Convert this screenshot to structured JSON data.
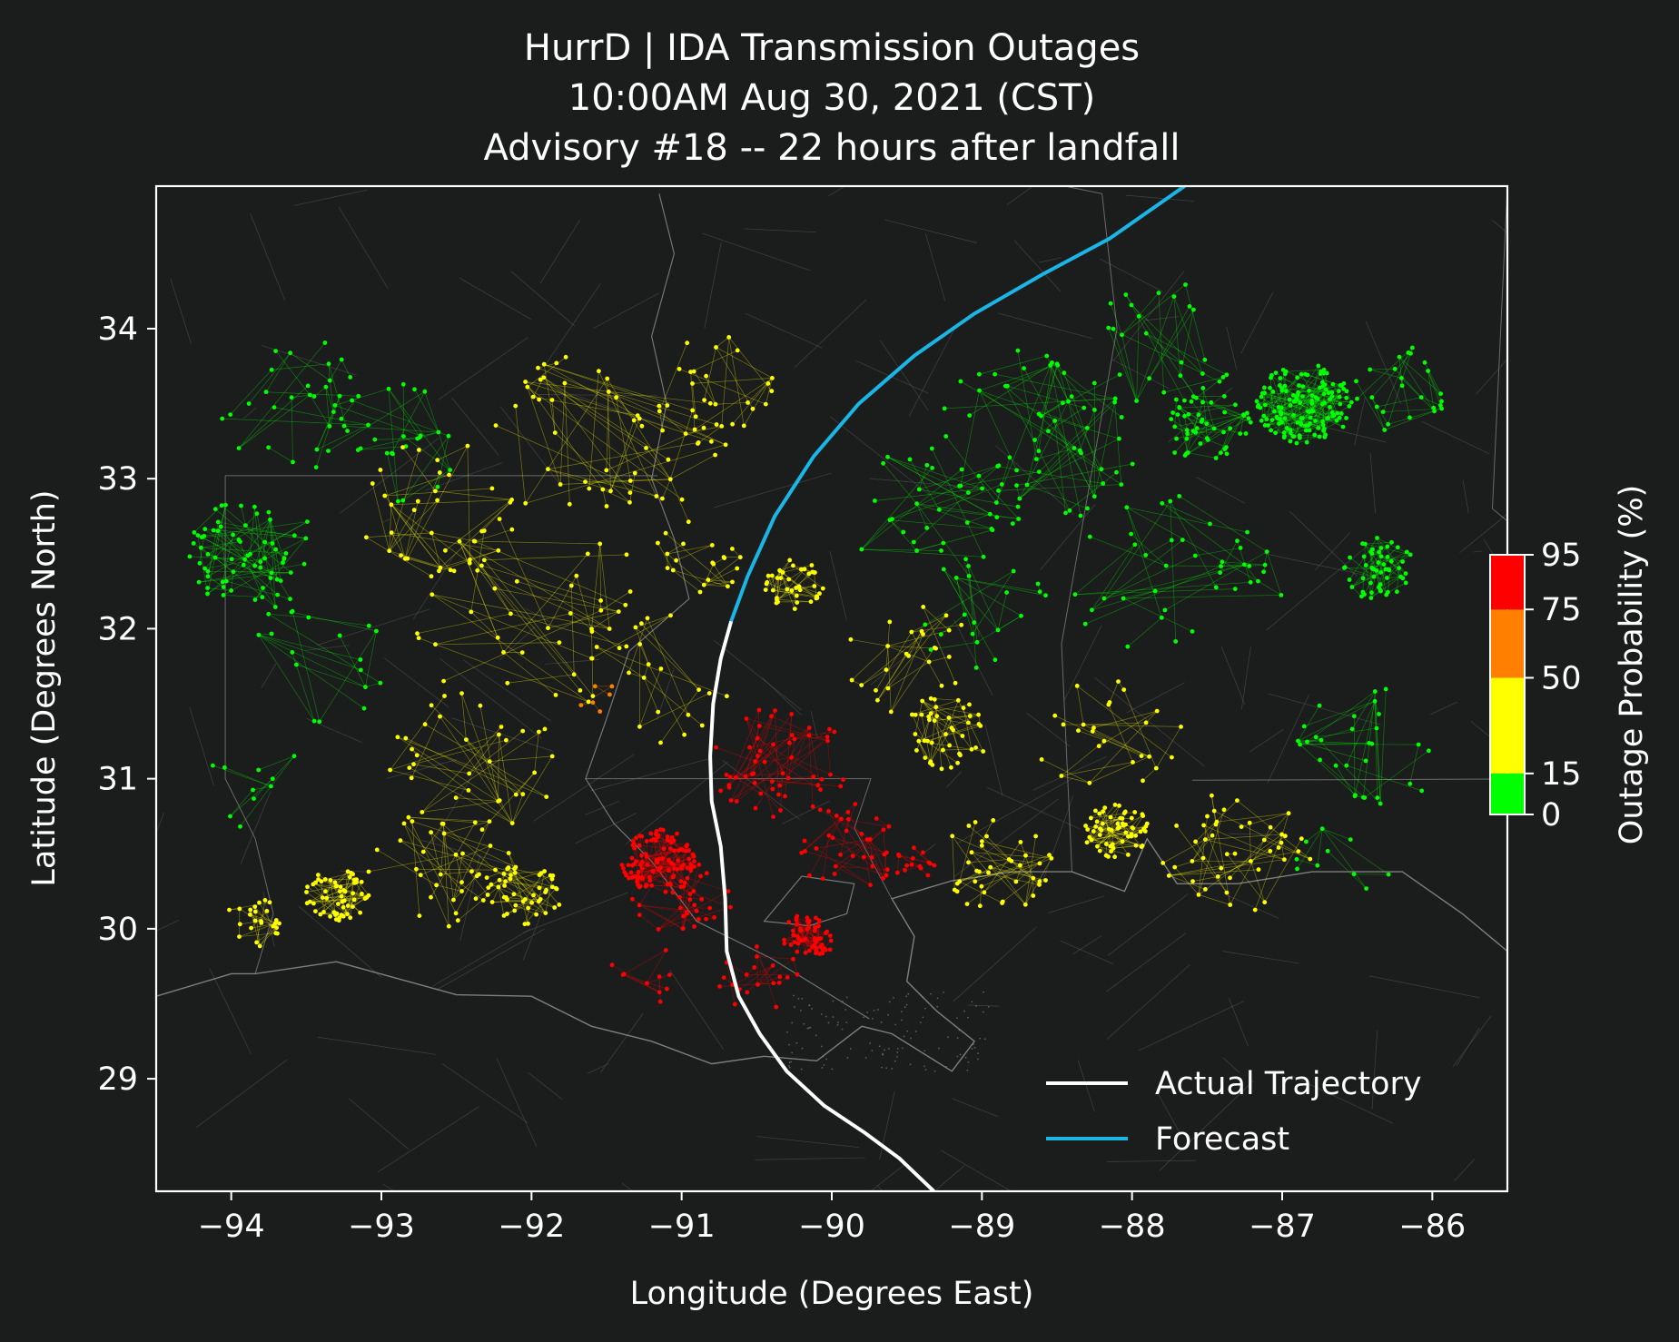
{
  "title_lines": [
    "HurrD | IDA Transmission Outages",
    "10:00AM Aug 30, 2021 (CST)",
    "Advisory #18 -- 22 hours after landfall"
  ],
  "xlabel": "Longitude (Degrees East)",
  "ylabel": "Latitude (Degrees North)",
  "colorbar_label": "Outage Probability (%)",
  "colors": {
    "background": "#1b1c1c",
    "actual_track": "#ffffff",
    "forecast_track": "#19b6e6",
    "green": "#00ff00",
    "yellow": "#ffff00",
    "orange": "#ff8000",
    "red": "#ff0000"
  },
  "chart_data": {
    "type": "scatter",
    "xlim": [
      -94.5,
      -85.5
    ],
    "ylim": [
      28.25,
      34.95
    ],
    "xticks": [
      -94,
      -93,
      -92,
      -91,
      -90,
      -89,
      -88,
      -87,
      -86
    ],
    "yticks": [
      29,
      30,
      31,
      32,
      33,
      34
    ],
    "xtick_labels": [
      "−94",
      "−93",
      "−92",
      "−91",
      "−90",
      "−89",
      "−88",
      "−87",
      "−86"
    ],
    "ytick_labels": [
      "29",
      "30",
      "31",
      "32",
      "33",
      "34"
    ],
    "colorbar": {
      "ticks": [
        0,
        15,
        50,
        75,
        95
      ],
      "tick_labels": [
        "0",
        "15",
        "50",
        "75",
        "95"
      ],
      "bins": [
        {
          "from": 0,
          "to": 15,
          "color": "#00ff00"
        },
        {
          "from": 15,
          "to": 50,
          "color": "#ffff00"
        },
        {
          "from": 50,
          "to": 75,
          "color": "#ff8000"
        },
        {
          "from": 75,
          "to": 95,
          "color": "#ff0000"
        }
      ]
    },
    "legend": {
      "position": "lower-right",
      "entries": [
        {
          "label": "Actual Trajectory",
          "color": "#ffffff"
        },
        {
          "label": "Forecast",
          "color": "#19b6e6"
        }
      ]
    },
    "actual_track": [
      [
        -89.32,
        28.25
      ],
      [
        -89.55,
        28.47
      ],
      [
        -89.78,
        28.64
      ],
      [
        -90.05,
        28.82
      ],
      [
        -90.3,
        29.05
      ],
      [
        -90.48,
        29.3
      ],
      [
        -90.62,
        29.55
      ],
      [
        -90.7,
        29.85
      ],
      [
        -90.71,
        30.2
      ],
      [
        -90.74,
        30.55
      ],
      [
        -90.8,
        30.85
      ],
      [
        -90.81,
        31.15
      ],
      [
        -90.79,
        31.5
      ],
      [
        -90.74,
        31.8
      ],
      [
        -90.67,
        32.05
      ]
    ],
    "forecast_track": [
      [
        -90.67,
        32.05
      ],
      [
        -90.56,
        32.35
      ],
      [
        -90.38,
        32.75
      ],
      [
        -90.12,
        33.15
      ],
      [
        -89.82,
        33.5
      ],
      [
        -89.45,
        33.82
      ],
      [
        -89.05,
        34.1
      ],
      [
        -88.6,
        34.36
      ],
      [
        -88.15,
        34.6
      ],
      [
        -87.65,
        34.95
      ]
    ],
    "clusters": [
      {
        "lon": -93.85,
        "lat": 32.5,
        "spread": 0.45,
        "count": 70,
        "color": "#00ff00"
      },
      {
        "lon": -93.6,
        "lat": 33.5,
        "spread": 0.55,
        "count": 30,
        "color": "#00ff00"
      },
      {
        "lon": -92.95,
        "lat": 33.25,
        "spread": 0.5,
        "count": 25,
        "color": "#00ff00"
      },
      {
        "lon": -93.4,
        "lat": 31.8,
        "spread": 0.5,
        "count": 18,
        "color": "#00ff00"
      },
      {
        "lon": -93.9,
        "lat": 31.0,
        "spread": 0.4,
        "count": 10,
        "color": "#00ff00"
      },
      {
        "lon": -92.6,
        "lat": 32.8,
        "spread": 0.55,
        "count": 35,
        "color": "#ffff00"
      },
      {
        "lon": -91.5,
        "lat": 33.2,
        "spread": 0.8,
        "count": 55,
        "color": "#ffff00"
      },
      {
        "lon": -92.0,
        "lat": 32.1,
        "spread": 0.8,
        "count": 45,
        "color": "#ffff00"
      },
      {
        "lon": -91.2,
        "lat": 31.7,
        "spread": 0.55,
        "count": 20,
        "color": "#ffff00"
      },
      {
        "lon": -92.4,
        "lat": 31.1,
        "spread": 0.6,
        "count": 35,
        "color": "#ffff00"
      },
      {
        "lon": -93.3,
        "lat": 30.22,
        "spread": 0.22,
        "count": 60,
        "color": "#ffff00"
      },
      {
        "lon": -93.85,
        "lat": 30.05,
        "spread": 0.2,
        "count": 25,
        "color": "#ffff00"
      },
      {
        "lon": -92.05,
        "lat": 30.22,
        "spread": 0.25,
        "count": 45,
        "color": "#ffff00"
      },
      {
        "lon": -92.6,
        "lat": 30.4,
        "spread": 0.5,
        "count": 40,
        "color": "#ffff00"
      },
      {
        "lon": -90.9,
        "lat": 32.5,
        "spread": 0.35,
        "count": 20,
        "color": "#ffff00"
      },
      {
        "lon": -90.25,
        "lat": 32.3,
        "spread": 0.2,
        "count": 40,
        "color": "#ffff00"
      },
      {
        "lon": -90.8,
        "lat": 33.6,
        "spread": 0.45,
        "count": 25,
        "color": "#ffff00"
      },
      {
        "lon": -91.15,
        "lat": 30.45,
        "spread": 0.25,
        "count": 110,
        "color": "#ff0000"
      },
      {
        "lon": -91.0,
        "lat": 30.15,
        "spread": 0.35,
        "count": 35,
        "color": "#ff0000"
      },
      {
        "lon": -90.15,
        "lat": 29.95,
        "spread": 0.18,
        "count": 60,
        "color": "#ff0000"
      },
      {
        "lon": -90.35,
        "lat": 31.1,
        "spread": 0.45,
        "count": 55,
        "color": "#ff0000"
      },
      {
        "lon": -89.9,
        "lat": 30.55,
        "spread": 0.35,
        "count": 35,
        "color": "#ff0000"
      },
      {
        "lon": -90.5,
        "lat": 29.7,
        "spread": 0.3,
        "count": 20,
        "color": "#ff0000"
      },
      {
        "lon": -89.45,
        "lat": 30.45,
        "spread": 0.15,
        "count": 15,
        "color": "#ff0000"
      },
      {
        "lon": -91.2,
        "lat": 29.65,
        "spread": 0.3,
        "count": 10,
        "color": "#ff0000"
      },
      {
        "lon": -89.25,
        "lat": 31.3,
        "spread": 0.3,
        "count": 45,
        "color": "#ffff00"
      },
      {
        "lon": -89.5,
        "lat": 31.8,
        "spread": 0.45,
        "count": 25,
        "color": "#ffff00"
      },
      {
        "lon": -88.9,
        "lat": 30.45,
        "spread": 0.4,
        "count": 40,
        "color": "#ffff00"
      },
      {
        "lon": -88.1,
        "lat": 30.65,
        "spread": 0.22,
        "count": 65,
        "color": "#ffff00"
      },
      {
        "lon": -87.3,
        "lat": 30.5,
        "spread": 0.5,
        "count": 45,
        "color": "#ffff00"
      },
      {
        "lon": -88.1,
        "lat": 31.3,
        "spread": 0.55,
        "count": 25,
        "color": "#ffff00"
      },
      {
        "lon": -86.85,
        "lat": 33.5,
        "spread": 0.32,
        "count": 150,
        "color": "#00ff00"
      },
      {
        "lon": -87.5,
        "lat": 33.35,
        "spread": 0.3,
        "count": 50,
        "color": "#00ff00"
      },
      {
        "lon": -86.35,
        "lat": 32.4,
        "spread": 0.25,
        "count": 55,
        "color": "#00ff00"
      },
      {
        "lon": -88.6,
        "lat": 33.3,
        "spread": 0.7,
        "count": 60,
        "color": "#00ff00"
      },
      {
        "lon": -89.3,
        "lat": 32.8,
        "spread": 0.6,
        "count": 35,
        "color": "#00ff00"
      },
      {
        "lon": -87.7,
        "lat": 32.3,
        "spread": 0.7,
        "count": 40,
        "color": "#00ff00"
      },
      {
        "lon": -86.4,
        "lat": 31.2,
        "spread": 0.5,
        "count": 30,
        "color": "#00ff00"
      },
      {
        "lon": -87.8,
        "lat": 33.9,
        "spread": 0.5,
        "count": 25,
        "color": "#00ff00"
      },
      {
        "lon": -86.2,
        "lat": 33.6,
        "spread": 0.35,
        "count": 25,
        "color": "#00ff00"
      },
      {
        "lon": -86.6,
        "lat": 30.42,
        "spread": 0.35,
        "count": 10,
        "color": "#00ff00"
      },
      {
        "lon": -89.0,
        "lat": 32.1,
        "spread": 0.45,
        "count": 20,
        "color": "#00ff00"
      },
      {
        "lon": -91.55,
        "lat": 31.55,
        "spread": 0.15,
        "count": 6,
        "color": "#ff8000"
      }
    ],
    "state_borders": [
      [
        [
          -94.04,
          33.02
        ],
        [
          -91.16,
          33.02
        ]
      ],
      [
        [
          -94.04,
          33.02
        ],
        [
          -94.04,
          31.0
        ],
        [
          -93.84,
          30.6
        ],
        [
          -93.72,
          30.1
        ],
        [
          -93.84,
          29.7
        ]
      ],
      [
        [
          -91.64,
          31.0
        ],
        [
          -89.74,
          31.0
        ],
        [
          -89.85,
          30.67
        ],
        [
          -89.6,
          30.2
        ]
      ],
      [
        [
          -88.45,
          34.95
        ],
        [
          -88.2,
          34.9
        ],
        [
          -88.1,
          34.0
        ],
        [
          -88.47,
          31.9
        ],
        [
          -88.4,
          30.38
        ]
      ],
      [
        [
          -87.6,
          30.99
        ],
        [
          -85.0,
          31.0
        ]
      ],
      [
        [
          -85.5,
          34.95
        ],
        [
          -85.6,
          32.8
        ],
        [
          -85.0,
          32.3
        ]
      ]
    ],
    "river": [
      [
        -91.15,
        34.9
      ],
      [
        -91.05,
        34.5
      ],
      [
        -91.2,
        33.95
      ],
      [
        -91.1,
        33.5
      ],
      [
        -91.2,
        33.0
      ],
      [
        -91.05,
        32.6
      ],
      [
        -90.95,
        32.2
      ],
      [
        -91.35,
        31.85
      ],
      [
        -91.5,
        31.4
      ],
      [
        -91.64,
        31.0
      ],
      [
        -91.45,
        30.7
      ],
      [
        -91.2,
        30.45
      ],
      [
        -90.9,
        30.05
      ],
      [
        -90.4,
        29.8
      ],
      [
        -89.75,
        29.4
      ]
    ],
    "coastline": [
      [
        -94.5,
        29.55
      ],
      [
        -94.0,
        29.7
      ],
      [
        -93.84,
        29.7
      ],
      [
        -93.3,
        29.78
      ],
      [
        -92.5,
        29.56
      ],
      [
        -92.0,
        29.55
      ],
      [
        -91.6,
        29.35
      ],
      [
        -91.2,
        29.25
      ],
      [
        -90.8,
        29.1
      ],
      [
        -90.45,
        29.15
      ],
      [
        -90.1,
        29.12
      ],
      [
        -89.8,
        29.35
      ],
      [
        -89.6,
        29.3
      ],
      [
        -89.2,
        29.05
      ],
      [
        -89.05,
        29.25
      ],
      [
        -89.3,
        29.45
      ],
      [
        -89.5,
        29.65
      ],
      [
        -89.45,
        29.95
      ],
      [
        -89.6,
        30.2
      ],
      [
        -89.2,
        30.32
      ],
      [
        -88.8,
        30.38
      ],
      [
        -88.4,
        30.38
      ],
      [
        -88.05,
        30.25
      ],
      [
        -87.9,
        30.6
      ],
      [
        -87.7,
        30.3
      ],
      [
        -87.3,
        30.3
      ],
      [
        -86.8,
        30.38
      ],
      [
        -86.2,
        30.38
      ],
      [
        -85.8,
        30.1
      ],
      [
        -85.5,
        29.85
      ]
    ],
    "lake": [
      [
        -90.45,
        30.05
      ],
      [
        -90.2,
        30.35
      ],
      [
        -89.85,
        30.3
      ],
      [
        -89.9,
        30.1
      ],
      [
        -90.15,
        30.02
      ],
      [
        -90.45,
        30.05
      ]
    ]
  }
}
